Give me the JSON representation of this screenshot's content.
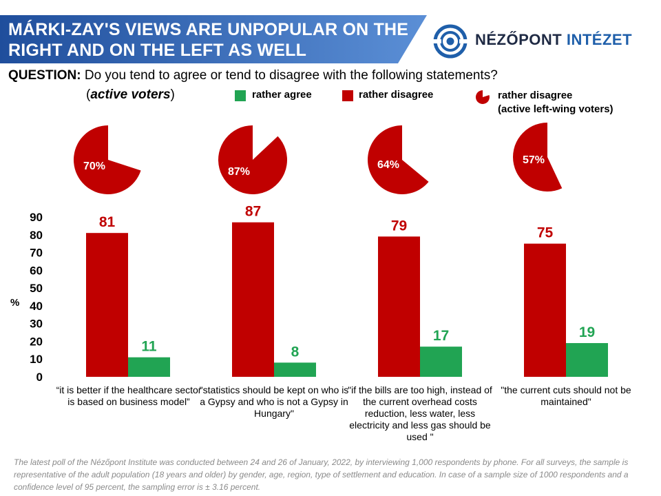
{
  "header": {
    "title": "MÁRKI-ZAY'S VIEWS ARE UNPOPULAR ON THE\nRIGHT AND ON THE LEFT AS WELL",
    "brand_name": "NÉZŐPONT ",
    "brand_accent": "INTÉZET"
  },
  "question": {
    "label": "QUESTION:",
    "text": "Do you tend to agree or tend to disagree with the following statements?",
    "sample_open": "(",
    "sample_text": "active voters",
    "sample_close": ")"
  },
  "legend": {
    "agree": "rather agree",
    "disagree": "rather disagree",
    "left_disagree_line1": "rather disagree",
    "left_disagree_line2": "(active left-wing voters)"
  },
  "colors": {
    "agree": "#21a453",
    "disagree": "#c00000",
    "banner_start": "#1f4e9c",
    "banner_end": "#5b8fd6",
    "brand": "#1f5faa"
  },
  "chart_data": {
    "type": "bar",
    "ylabel": "%",
    "ylim": [
      0,
      90
    ],
    "yticks": [
      "0",
      "10",
      "20",
      "30",
      "40",
      "50",
      "60",
      "70",
      "80",
      "90"
    ],
    "categories": [
      "“it is better if the healthcare sector is based on business model”",
      "\"statistics should be kept on who is a Gypsy and who is not a Gypsy in Hungary\"",
      "\"if the bills are too high, instead of the current overhead costs reduction, less water, less electricity and less gas should be used \"",
      "\"the current cuts should not be maintained\""
    ],
    "series": [
      {
        "name": "rather disagree",
        "values": [
          81,
          87,
          79,
          75
        ]
      },
      {
        "name": "rather agree",
        "values": [
          11,
          8,
          17,
          19
        ]
      }
    ],
    "pies": {
      "name": "rather disagree (active left-wing voters)",
      "values": [
        70,
        87,
        64,
        57
      ],
      "labels": [
        "70%",
        "87%",
        "64%",
        "57%"
      ]
    }
  },
  "footnote": "The latest poll of the Nézőpont Institute was conducted between 24 and 26 of January, 2022, by interviewing 1,000 respondents by phone. For all surveys, the sample is representative of the adult population (18 years and older) by gender, age, region, type of settlement and education. In case of a sample size of 1000 respondents and a confidence level of 95 percent, the sampling error is ± 3.16 percent."
}
